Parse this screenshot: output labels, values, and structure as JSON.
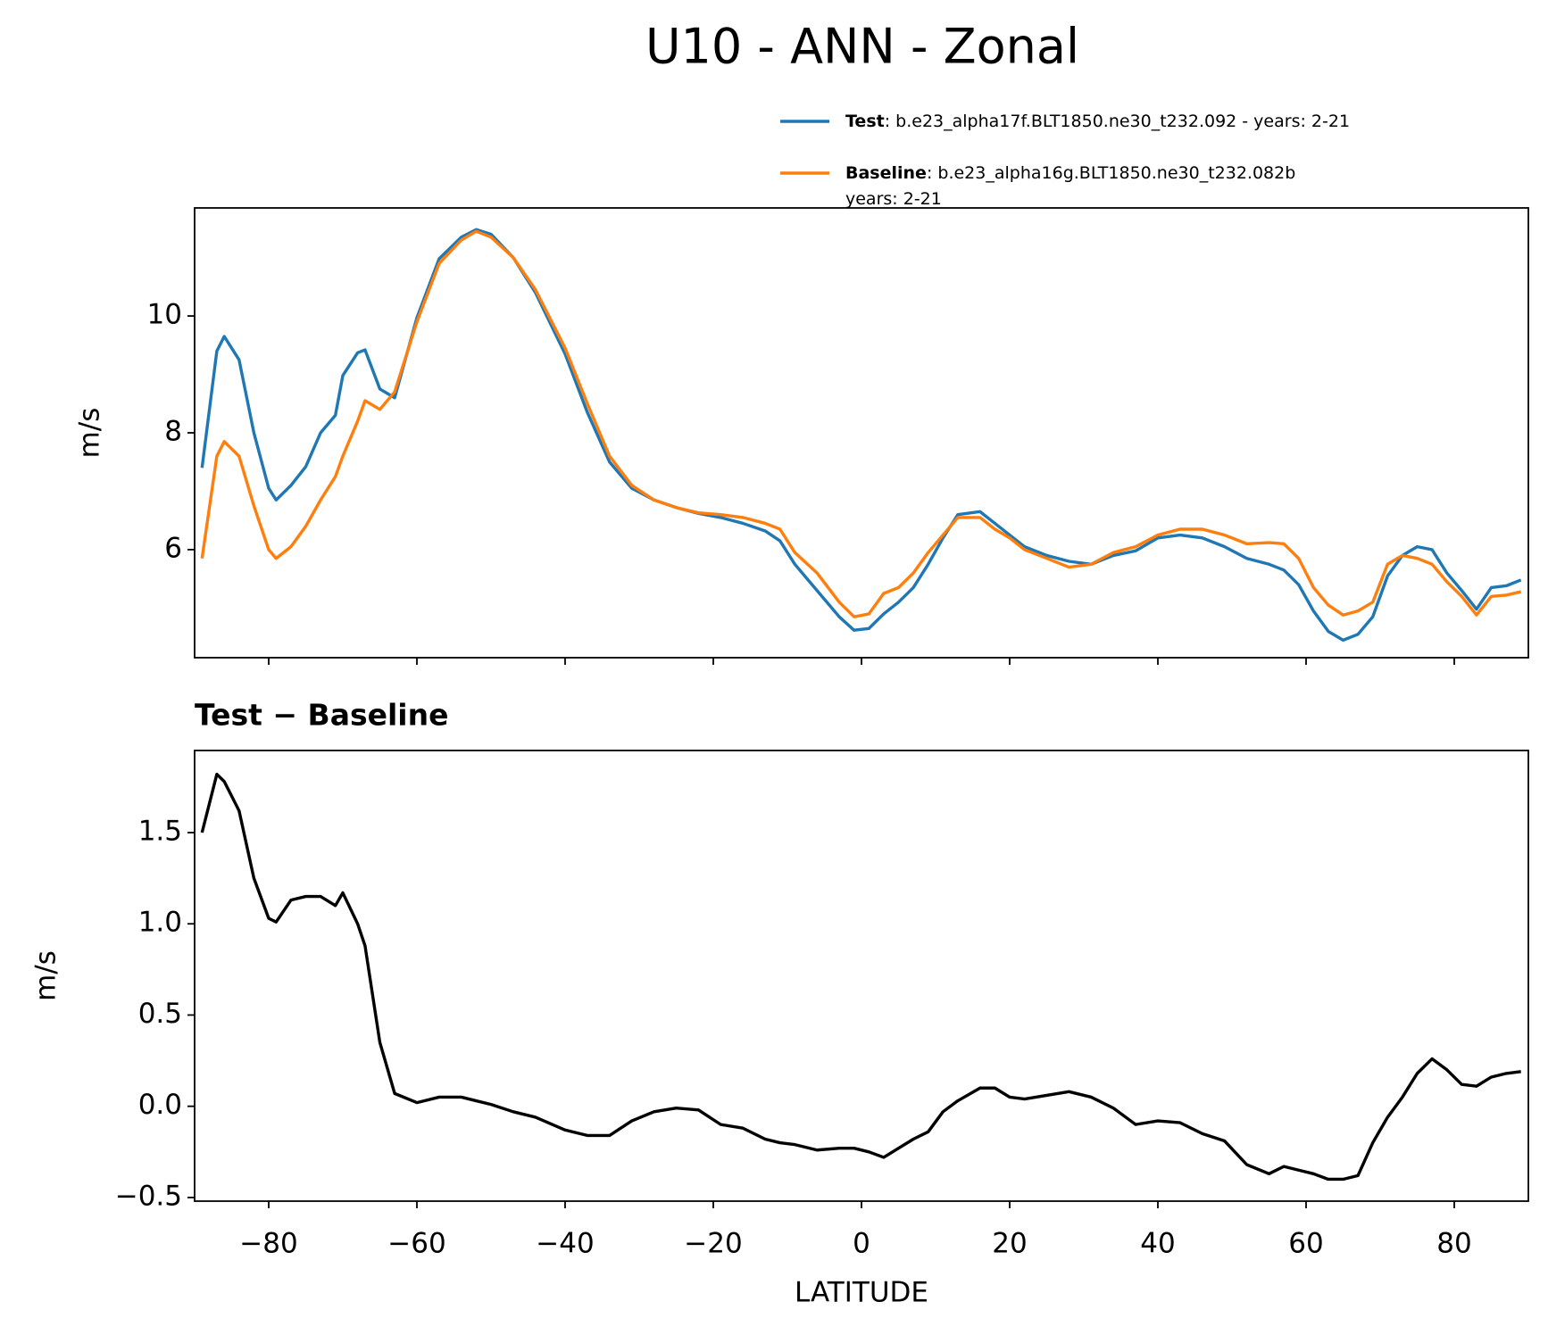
{
  "title": "U10 - ANN - Zonal",
  "chart_data": [
    {
      "type": "line",
      "ylabel": "m/s",
      "x": [
        -89,
        -87,
        -86,
        -84,
        -82,
        -80,
        -79,
        -77,
        -75,
        -73,
        -71,
        -70,
        -68,
        -67,
        -65,
        -63,
        -60,
        -57,
        -54,
        -52,
        -50,
        -47,
        -44,
        -40,
        -37,
        -34,
        -31,
        -28,
        -25,
        -22,
        -19,
        -16,
        -13,
        -11,
        -9,
        -6,
        -3,
        -1,
        1,
        3,
        5,
        7,
        9,
        11,
        13,
        16,
        18,
        20,
        22,
        25,
        28,
        31,
        34,
        37,
        40,
        43,
        46,
        49,
        52,
        55,
        57,
        59,
        61,
        63,
        65,
        67,
        69,
        71,
        73,
        75,
        77,
        79,
        81,
        83,
        85,
        87,
        89
      ],
      "series": [
        {
          "name": "Test",
          "description": [
            ": b.e23_alpha17f.BLT1850.ne30_t232.092 - years: 2-21"
          ],
          "color": "#1f77b4",
          "values": [
            7.4,
            9.4,
            9.65,
            9.25,
            8.0,
            7.05,
            6.85,
            7.1,
            7.42,
            8.0,
            8.3,
            8.98,
            9.37,
            9.42,
            8.75,
            8.6,
            9.97,
            10.98,
            11.35,
            11.48,
            11.4,
            11.0,
            10.4,
            9.35,
            8.35,
            7.5,
            7.05,
            6.85,
            6.72,
            6.62,
            6.55,
            6.45,
            6.32,
            6.15,
            5.75,
            5.3,
            4.85,
            4.62,
            4.65,
            4.9,
            5.1,
            5.35,
            5.75,
            6.2,
            6.6,
            6.65,
            6.45,
            6.25,
            6.05,
            5.9,
            5.8,
            5.75,
            5.9,
            5.98,
            6.2,
            6.25,
            6.2,
            6.05,
            5.85,
            5.75,
            5.65,
            5.4,
            4.95,
            4.6,
            4.45,
            4.55,
            4.85,
            5.55,
            5.9,
            6.05,
            6.0,
            5.6,
            5.3,
            4.98,
            5.35,
            5.38,
            5.48
          ]
        },
        {
          "name": "Baseline",
          "description": [
            ": b.e23_alpha16g.BLT1850.ne30_t232.082b",
            "years: 2-21"
          ],
          "color": "#ff7f0e",
          "values": [
            5.85,
            7.6,
            7.85,
            7.6,
            6.75,
            6.0,
            5.85,
            6.05,
            6.4,
            6.85,
            7.25,
            7.6,
            8.2,
            8.55,
            8.4,
            8.7,
            9.9,
            10.9,
            11.3,
            11.45,
            11.35,
            11.0,
            10.45,
            9.45,
            8.5,
            7.6,
            7.1,
            6.85,
            6.72,
            6.63,
            6.6,
            6.55,
            6.45,
            6.35,
            5.95,
            5.6,
            5.1,
            4.85,
            4.9,
            5.25,
            5.35,
            5.6,
            5.95,
            6.25,
            6.55,
            6.55,
            6.35,
            6.2,
            6.0,
            5.85,
            5.7,
            5.75,
            5.95,
            6.05,
            6.25,
            6.35,
            6.35,
            6.25,
            6.1,
            6.12,
            6.1,
            5.85,
            5.35,
            5.05,
            4.88,
            4.95,
            5.1,
            5.75,
            5.9,
            5.85,
            5.75,
            5.45,
            5.2,
            4.88,
            5.2,
            5.22,
            5.28
          ]
        }
      ],
      "xlim": [
        -90,
        90
      ],
      "xticks": [
        -80,
        -60,
        -40,
        -20,
        0,
        20,
        40,
        60,
        80
      ],
      "show_xtick_labels": false,
      "ylim": [
        4.15,
        11.85
      ],
      "yticks": [
        6,
        8,
        10
      ],
      "legend": "upper right outside"
    },
    {
      "type": "line",
      "title": "Test − Baseline",
      "ylabel": "m/s",
      "xlabel": "LATITUDE",
      "x": [
        -89,
        -87,
        -86,
        -84,
        -82,
        -80,
        -79,
        -77,
        -75,
        -73,
        -71,
        -70,
        -68,
        -67,
        -65,
        -63,
        -60,
        -57,
        -54,
        -52,
        -50,
        -47,
        -44,
        -40,
        -37,
        -34,
        -31,
        -28,
        -25,
        -22,
        -19,
        -16,
        -13,
        -11,
        -9,
        -6,
        -3,
        -1,
        1,
        3,
        5,
        7,
        9,
        11,
        13,
        16,
        18,
        20,
        22,
        25,
        28,
        31,
        34,
        37,
        40,
        43,
        46,
        49,
        52,
        55,
        57,
        59,
        61,
        63,
        65,
        67,
        69,
        71,
        73,
        75,
        77,
        79,
        81,
        83,
        85,
        87,
        89
      ],
      "series": [
        {
          "color": "#000000",
          "values": [
            1.5,
            1.82,
            1.78,
            1.62,
            1.25,
            1.03,
            1.01,
            1.13,
            1.15,
            1.15,
            1.1,
            1.17,
            1.0,
            0.88,
            0.35,
            0.07,
            0.02,
            0.05,
            0.05,
            0.03,
            0.01,
            -0.03,
            -0.06,
            -0.13,
            -0.16,
            -0.16,
            -0.08,
            -0.03,
            -0.01,
            -0.02,
            -0.1,
            -0.12,
            -0.18,
            -0.2,
            -0.21,
            -0.24,
            -0.23,
            -0.23,
            -0.25,
            -0.28,
            -0.23,
            -0.18,
            -0.14,
            -0.03,
            0.03,
            0.1,
            0.1,
            0.05,
            0.04,
            0.06,
            0.08,
            0.05,
            -0.01,
            -0.1,
            -0.08,
            -0.09,
            -0.15,
            -0.19,
            -0.32,
            -0.37,
            -0.33,
            -0.35,
            -0.37,
            -0.4,
            -0.4,
            -0.38,
            -0.2,
            -0.06,
            0.05,
            0.18,
            0.26,
            0.2,
            0.12,
            0.11,
            0.16,
            0.18,
            0.19
          ]
        }
      ],
      "xlim": [
        -90,
        90
      ],
      "xticks": [
        {
          "value": -80,
          "label": "−80"
        },
        {
          "value": -60,
          "label": "−60"
        },
        {
          "value": -40,
          "label": "−40"
        },
        {
          "value": -20,
          "label": "−20"
        },
        0,
        20,
        40,
        60,
        80
      ],
      "show_xtick_labels": true,
      "ylim": [
        -0.52,
        1.95
      ],
      "yticks": [
        {
          "value": -0.5,
          "label": "−0.5"
        },
        {
          "value": 0,
          "label": "0.0"
        },
        0.5,
        {
          "value": 1,
          "label": "1.0"
        },
        1.5
      ]
    }
  ]
}
